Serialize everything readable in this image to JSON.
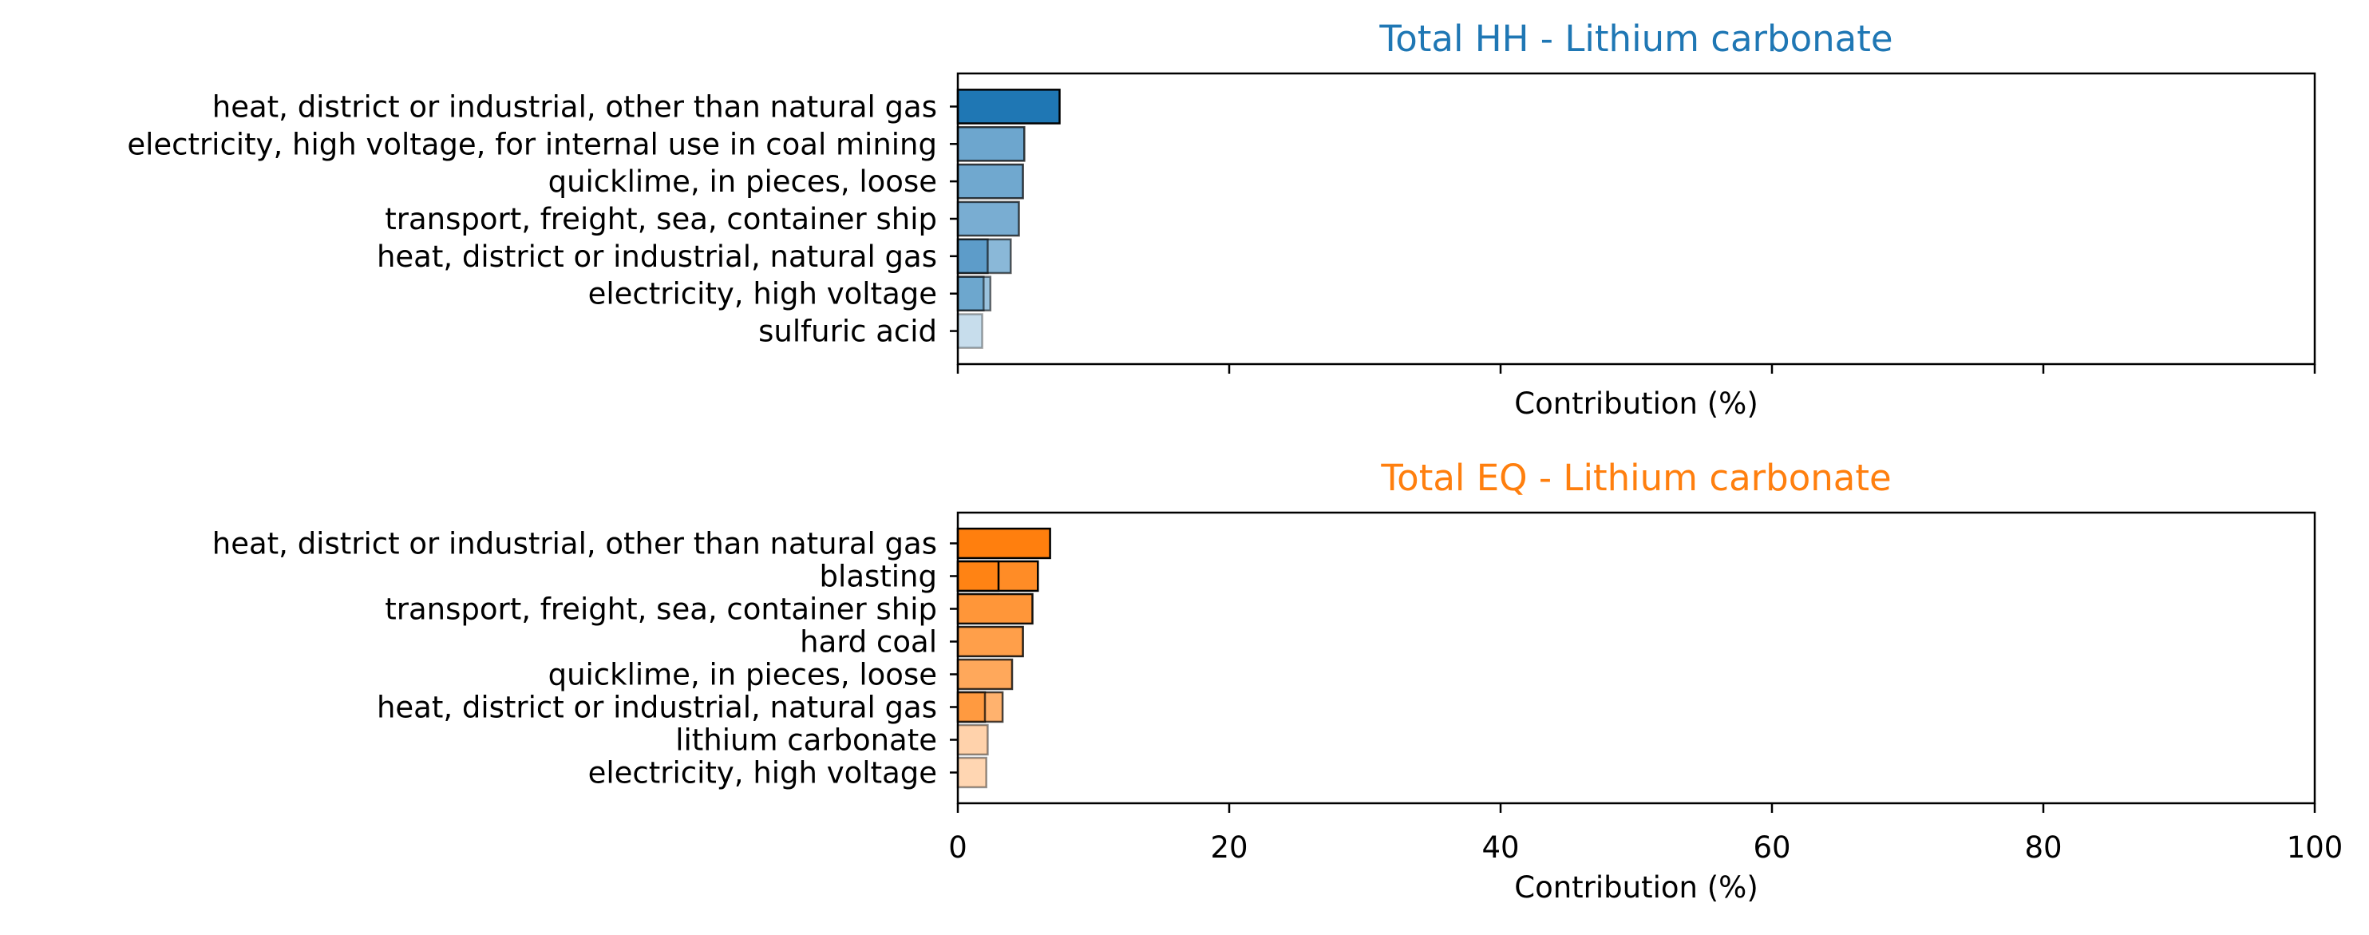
{
  "chart_data": [
    {
      "type": "bar",
      "orientation": "horizontal",
      "title": "Total HH - Lithium carbonate",
      "xlabel": "Contribution (%)",
      "xlim": [
        0,
        100
      ],
      "show_tick_labels": false,
      "grid": false,
      "colors": {
        "title": "#1f77b4",
        "bar": "#1f77b4"
      },
      "categories": [
        "heat, district or industrial, other than natural gas",
        "electricity, high voltage, for internal use in coal mining",
        "quicklime, in pieces, loose",
        "transport, freight, sea, container ship",
        "heat, district or industrial, natural gas",
        "electricity, high voltage",
        "sulfuric acid"
      ],
      "values": [
        7.5,
        4.9,
        4.8,
        4.5,
        3.9,
        2.4,
        1.8
      ],
      "inner_values": [
        null,
        null,
        null,
        null,
        2.2,
        1.9,
        null
      ],
      "opacity": [
        1.0,
        0.65,
        0.64,
        0.6,
        0.52,
        0.45,
        0.25
      ]
    },
    {
      "type": "bar",
      "orientation": "horizontal",
      "title": "Total EQ - Lithium carbonate",
      "xlabel": "Contribution (%)",
      "xlim": [
        0,
        100
      ],
      "xticks": [
        0,
        20,
        40,
        60,
        80,
        100
      ],
      "show_tick_labels": true,
      "grid": false,
      "colors": {
        "title": "#ff7f0e",
        "bar": "#ff7f0e"
      },
      "categories": [
        "heat, district or industrial, other than natural gas",
        "blasting",
        "transport, freight, sea, container ship",
        "hard coal",
        "quicklime, in pieces, loose",
        "heat, district or industrial, natural gas",
        "lithium carbonate",
        "electricity, high voltage"
      ],
      "values": [
        6.8,
        5.9,
        5.5,
        4.8,
        4.0,
        3.3,
        2.2,
        2.1
      ],
      "inner_values": [
        null,
        3.0,
        null,
        null,
        null,
        2.0,
        null,
        null
      ],
      "opacity": [
        1.0,
        0.9,
        0.82,
        0.75,
        0.68,
        0.6,
        0.35,
        0.32
      ]
    }
  ]
}
